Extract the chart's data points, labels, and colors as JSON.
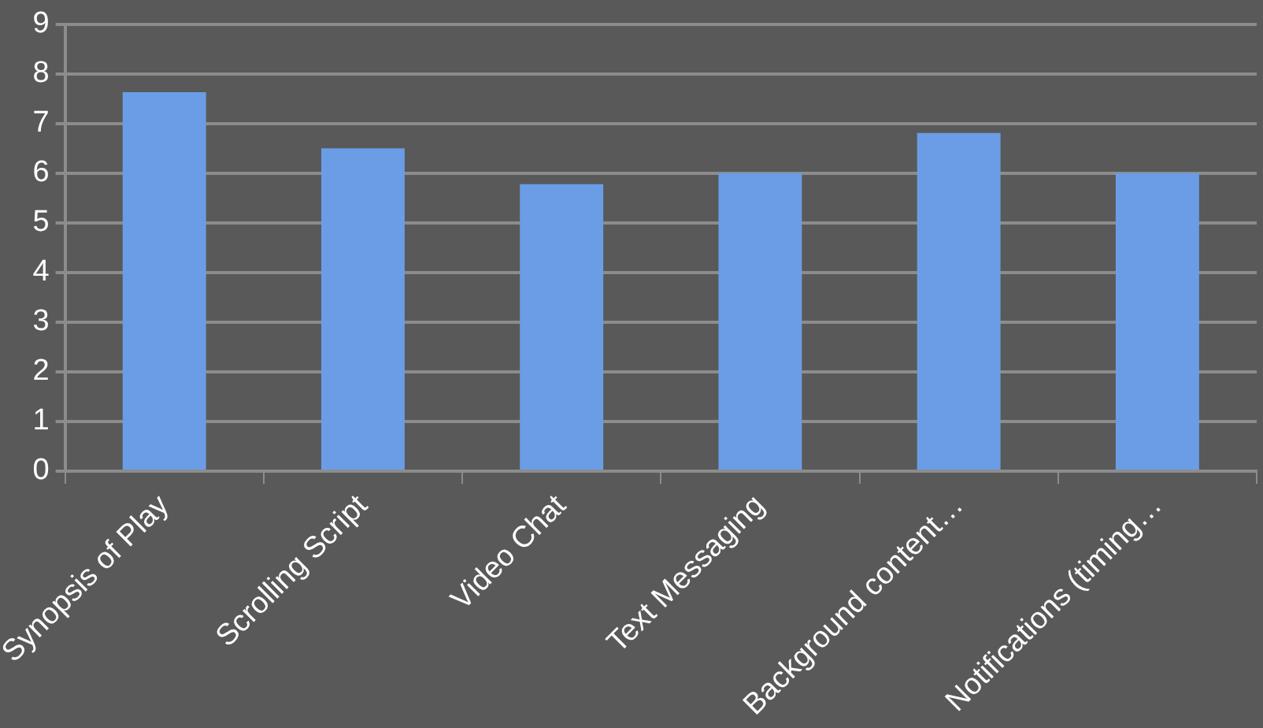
{
  "chart_data": {
    "type": "bar",
    "categories": [
      "Synopsis of Play",
      "Scrolling Script",
      "Video Chat",
      "Text Messaging",
      "Background content…",
      "Notifications (timing…"
    ],
    "values": [
      7.63,
      6.5,
      5.78,
      6.0,
      6.81,
      6.0
    ],
    "color": "#6a9de6",
    "ylim": [
      0,
      9
    ],
    "yticks": [
      0,
      1,
      2,
      3,
      4,
      5,
      6,
      7,
      8,
      9
    ],
    "grid": "y",
    "legend": false
  }
}
